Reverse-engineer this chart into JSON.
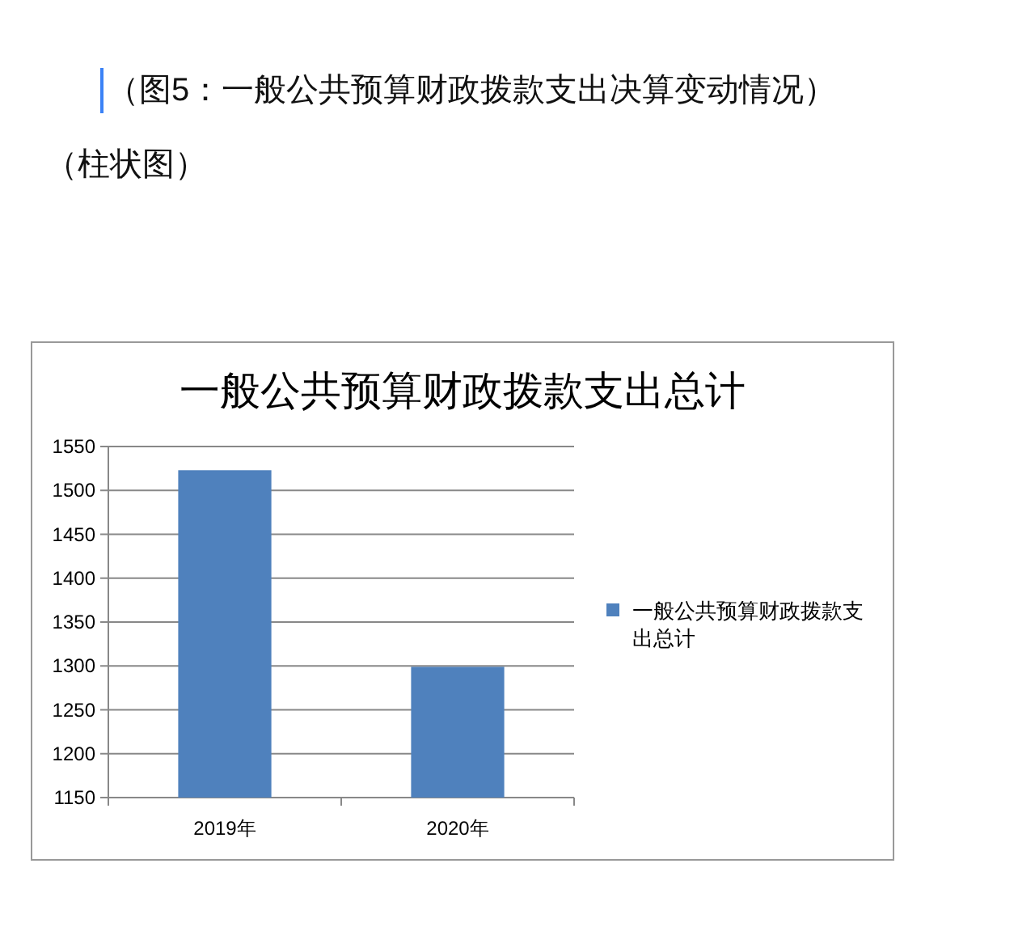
{
  "chart_data": {
    "type": "bar",
    "title": "一般公共预算财政拨款支出总计",
    "annotations": [
      "（图5：一般公共预算财政拨款支出决算变动情况）",
      "（柱状图）"
    ],
    "categories": [
      "2019年",
      "2020年"
    ],
    "series": [
      {
        "name": "一般公共预算财政拨款支出总计",
        "color": "#4f81bd",
        "values": [
          1523,
          1299
        ]
      }
    ],
    "ylim": [
      1150,
      1550
    ],
    "yticks": [
      1150,
      1200,
      1250,
      1300,
      1350,
      1400,
      1450,
      1500,
      1550
    ],
    "grid": "y",
    "legend": "right"
  }
}
